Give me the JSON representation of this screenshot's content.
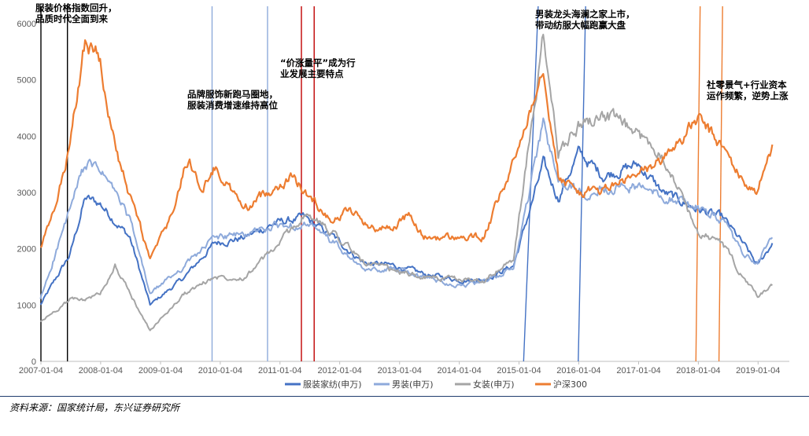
{
  "chart_data": {
    "type": "line",
    "title": "",
    "xlabel": "",
    "ylabel": "",
    "ylim": [
      0,
      6000
    ],
    "yticks": [
      0,
      1000,
      2000,
      3000,
      4000,
      5000,
      6000
    ],
    "xticks": [
      "2007-01-04",
      "2008-01-04",
      "2009-01-04",
      "2010-01-04",
      "2011-01-04",
      "2012-01-04",
      "2013-01-04",
      "2014-01-04",
      "2015-01-04",
      "2016-01-04",
      "2017-01-04",
      "2018-01-04",
      "2019-01-04"
    ],
    "grid": false,
    "legend_position": "bottom",
    "series": [
      {
        "name": "服装家纺(申万)",
        "color": "#4472c4",
        "dates": [
          "2007-01",
          "2007-07",
          "2007-10",
          "2008-01",
          "2008-04",
          "2008-07",
          "2008-11",
          "2009-06",
          "2009-12",
          "2010-06",
          "2010-12",
          "2011-06",
          "2011-12",
          "2012-06",
          "2012-12",
          "2013-06",
          "2014-01",
          "2014-06",
          "2014-12",
          "2015-06",
          "2015-09",
          "2016-01",
          "2016-06",
          "2017-01",
          "2017-06",
          "2018-01",
          "2018-06",
          "2018-10",
          "2019-01",
          "2019-04"
        ],
        "values": [
          1000,
          1900,
          2900,
          2800,
          2500,
          2200,
          1000,
          1500,
          2100,
          2200,
          2450,
          2550,
          2200,
          1750,
          1700,
          1550,
          1450,
          1450,
          1700,
          3500,
          2900,
          3700,
          3300,
          3500,
          3000,
          2700,
          2550,
          2100,
          1700,
          2100
        ]
      },
      {
        "name": "男装(申万)",
        "color": "#8eaadb",
        "dates": [
          "2007-01",
          "2007-07",
          "2007-10",
          "2008-01",
          "2008-04",
          "2008-07",
          "2008-11",
          "2009-06",
          "2009-12",
          "2010-06",
          "2010-12",
          "2011-06",
          "2011-12",
          "2012-06",
          "2012-12",
          "2013-06",
          "2014-01",
          "2014-06",
          "2014-12",
          "2015-06",
          "2015-09",
          "2016-01",
          "2016-06",
          "2017-01",
          "2017-06",
          "2018-01",
          "2018-06",
          "2018-10",
          "2019-01",
          "2019-04"
        ],
        "values": [
          1100,
          2700,
          3500,
          3400,
          3000,
          2500,
          1200,
          1700,
          2200,
          2250,
          2400,
          2450,
          2100,
          1600,
          1650,
          1500,
          1350,
          1400,
          1650,
          4200,
          3200,
          3000,
          3100,
          3100,
          2950,
          2750,
          2500,
          1900,
          1750,
          2200
        ]
      },
      {
        "name": "女装(申万)",
        "color": "#a5a5a5",
        "dates": [
          "2007-01",
          "2007-07",
          "2007-10",
          "2008-01",
          "2008-04",
          "2008-07",
          "2008-11",
          "2009-06",
          "2009-12",
          "2010-06",
          "2010-12",
          "2011-06",
          "2011-12",
          "2012-06",
          "2012-12",
          "2013-06",
          "2014-01",
          "2014-06",
          "2014-12",
          "2015-06",
          "2015-09",
          "2016-01",
          "2016-06",
          "2017-01",
          "2017-06",
          "2018-01",
          "2018-06",
          "2018-10",
          "2019-01",
          "2019-04"
        ],
        "values": [
          700,
          1100,
          1100,
          1200,
          1700,
          1200,
          550,
          1200,
          1500,
          1500,
          2000,
          2600,
          2300,
          1750,
          1600,
          1500,
          1450,
          1450,
          1800,
          5700,
          3700,
          4200,
          4400,
          4000,
          3700,
          2300,
          2100,
          1500,
          1150,
          1350
        ]
      },
      {
        "name": "沪深300",
        "color": "#ed7d31",
        "dates": [
          "2007-01",
          "2007-04",
          "2007-07",
          "2007-10",
          "2008-01",
          "2008-04",
          "2008-07",
          "2008-09",
          "2008-11",
          "2009-03",
          "2009-07",
          "2009-09",
          "2009-12",
          "2010-06",
          "2010-12",
          "2011-04",
          "2011-06",
          "2011-12",
          "2012-03",
          "2012-08",
          "2012-12",
          "2013-03",
          "2013-06",
          "2014-01",
          "2014-06",
          "2014-12",
          "2015-06",
          "2015-09",
          "2016-01",
          "2016-06",
          "2017-01",
          "2017-06",
          "2018-01",
          "2018-06",
          "2018-10",
          "2019-01",
          "2019-04"
        ],
        "values": [
          2000,
          2700,
          3800,
          5700,
          5400,
          3800,
          2900,
          2400,
          1800,
          2500,
          3700,
          3000,
          3450,
          2700,
          3100,
          3300,
          3000,
          2500,
          2700,
          2350,
          2400,
          2600,
          2200,
          2200,
          2200,
          3500,
          5300,
          3300,
          3000,
          3050,
          3300,
          3600,
          4300,
          3800,
          3200,
          3000,
          3850
        ]
      }
    ],
    "event_lines": [
      {
        "date": "2007-01-04",
        "color": "#000000"
      },
      {
        "date": "2007-06-15",
        "color": "#000000"
      },
      {
        "date": "2009-11-15",
        "color": "#8eaadb"
      },
      {
        "date": "2010-10-20",
        "color": "#8eaadb"
      },
      {
        "date": "2011-05-15",
        "color": "#c00000"
      },
      {
        "date": "2011-08-01",
        "color": "#c00000"
      },
      {
        "date": "2015-02-01",
        "color": "#4472c4",
        "slant_to": "2015-05-01"
      },
      {
        "date": "2016-01-01",
        "color": "#4472c4",
        "slant_to": "2016-02-15"
      },
      {
        "date": "2017-12-20",
        "color": "#ed7d31",
        "slant_to": "2018-01-15"
      },
      {
        "date": "2018-05-10",
        "color": "#ed7d31",
        "slant_to": "2018-06-01"
      }
    ],
    "annotations": [
      {
        "lines": [
          "服装价格指数回升，",
          "品质时代全面到来"
        ]
      },
      {
        "lines": [
          "品牌服饰新跑马圈地，",
          "服装消费增速维持高位"
        ]
      },
      {
        "lines": [
          "“价涨量平”成为行",
          "业发展主要特点"
        ]
      },
      {
        "lines": [
          "男装龙头海澜之家上市，",
          "带动纺服大幅跑赢大盘"
        ]
      },
      {
        "lines": [
          "社零景气+行业资本",
          "运作频繁，逆势上涨"
        ]
      }
    ]
  },
  "source": "资料来源：国家统计局，东兴证券研究所"
}
